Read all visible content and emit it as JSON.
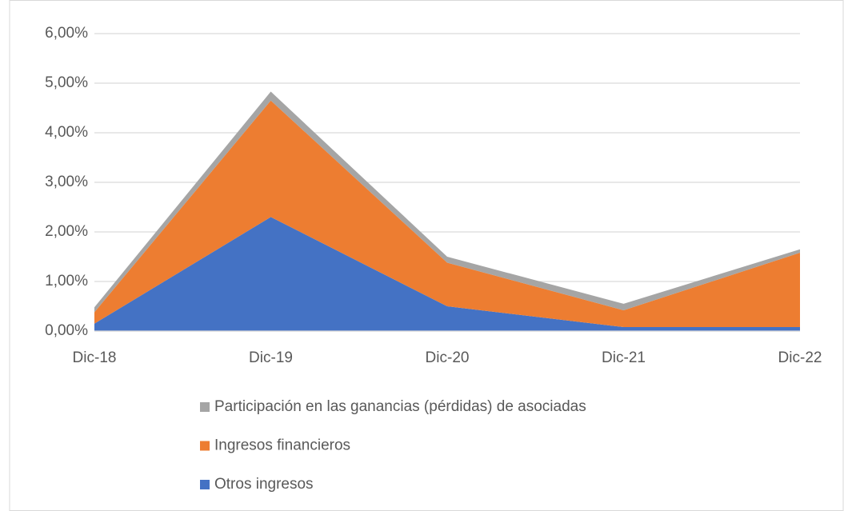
{
  "chart_data": {
    "type": "stacked_area",
    "categories": [
      "Dic-18",
      "Dic-19",
      "Dic-20",
      "Dic-21",
      "Dic-22"
    ],
    "series": [
      {
        "name": "Otros ingresos",
        "color": "#4472c4",
        "values": [
          0.15,
          2.3,
          0.5,
          0.08,
          0.08
        ]
      },
      {
        "name": "Ingresos financieros",
        "color": "#ed7d31",
        "values": [
          0.23,
          2.35,
          0.88,
          0.34,
          1.5
        ]
      },
      {
        "name": "Participación en las ganancias (pérdidas) de asociadas",
        "color": "#a5a5a5",
        "values": [
          0.1,
          0.18,
          0.12,
          0.13,
          0.07
        ]
      }
    ],
    "ylim": [
      0,
      6
    ],
    "yticks": [
      {
        "value": 0,
        "label": "0,00%"
      },
      {
        "value": 1,
        "label": "1,00%"
      },
      {
        "value": 2,
        "label": "2,00%"
      },
      {
        "value": 3,
        "label": "3,00%"
      },
      {
        "value": 4,
        "label": "4,00%"
      },
      {
        "value": 5,
        "label": "5,00%"
      },
      {
        "value": 6,
        "label": "6,00%"
      }
    ],
    "grid": true,
    "legend": "bottom"
  }
}
